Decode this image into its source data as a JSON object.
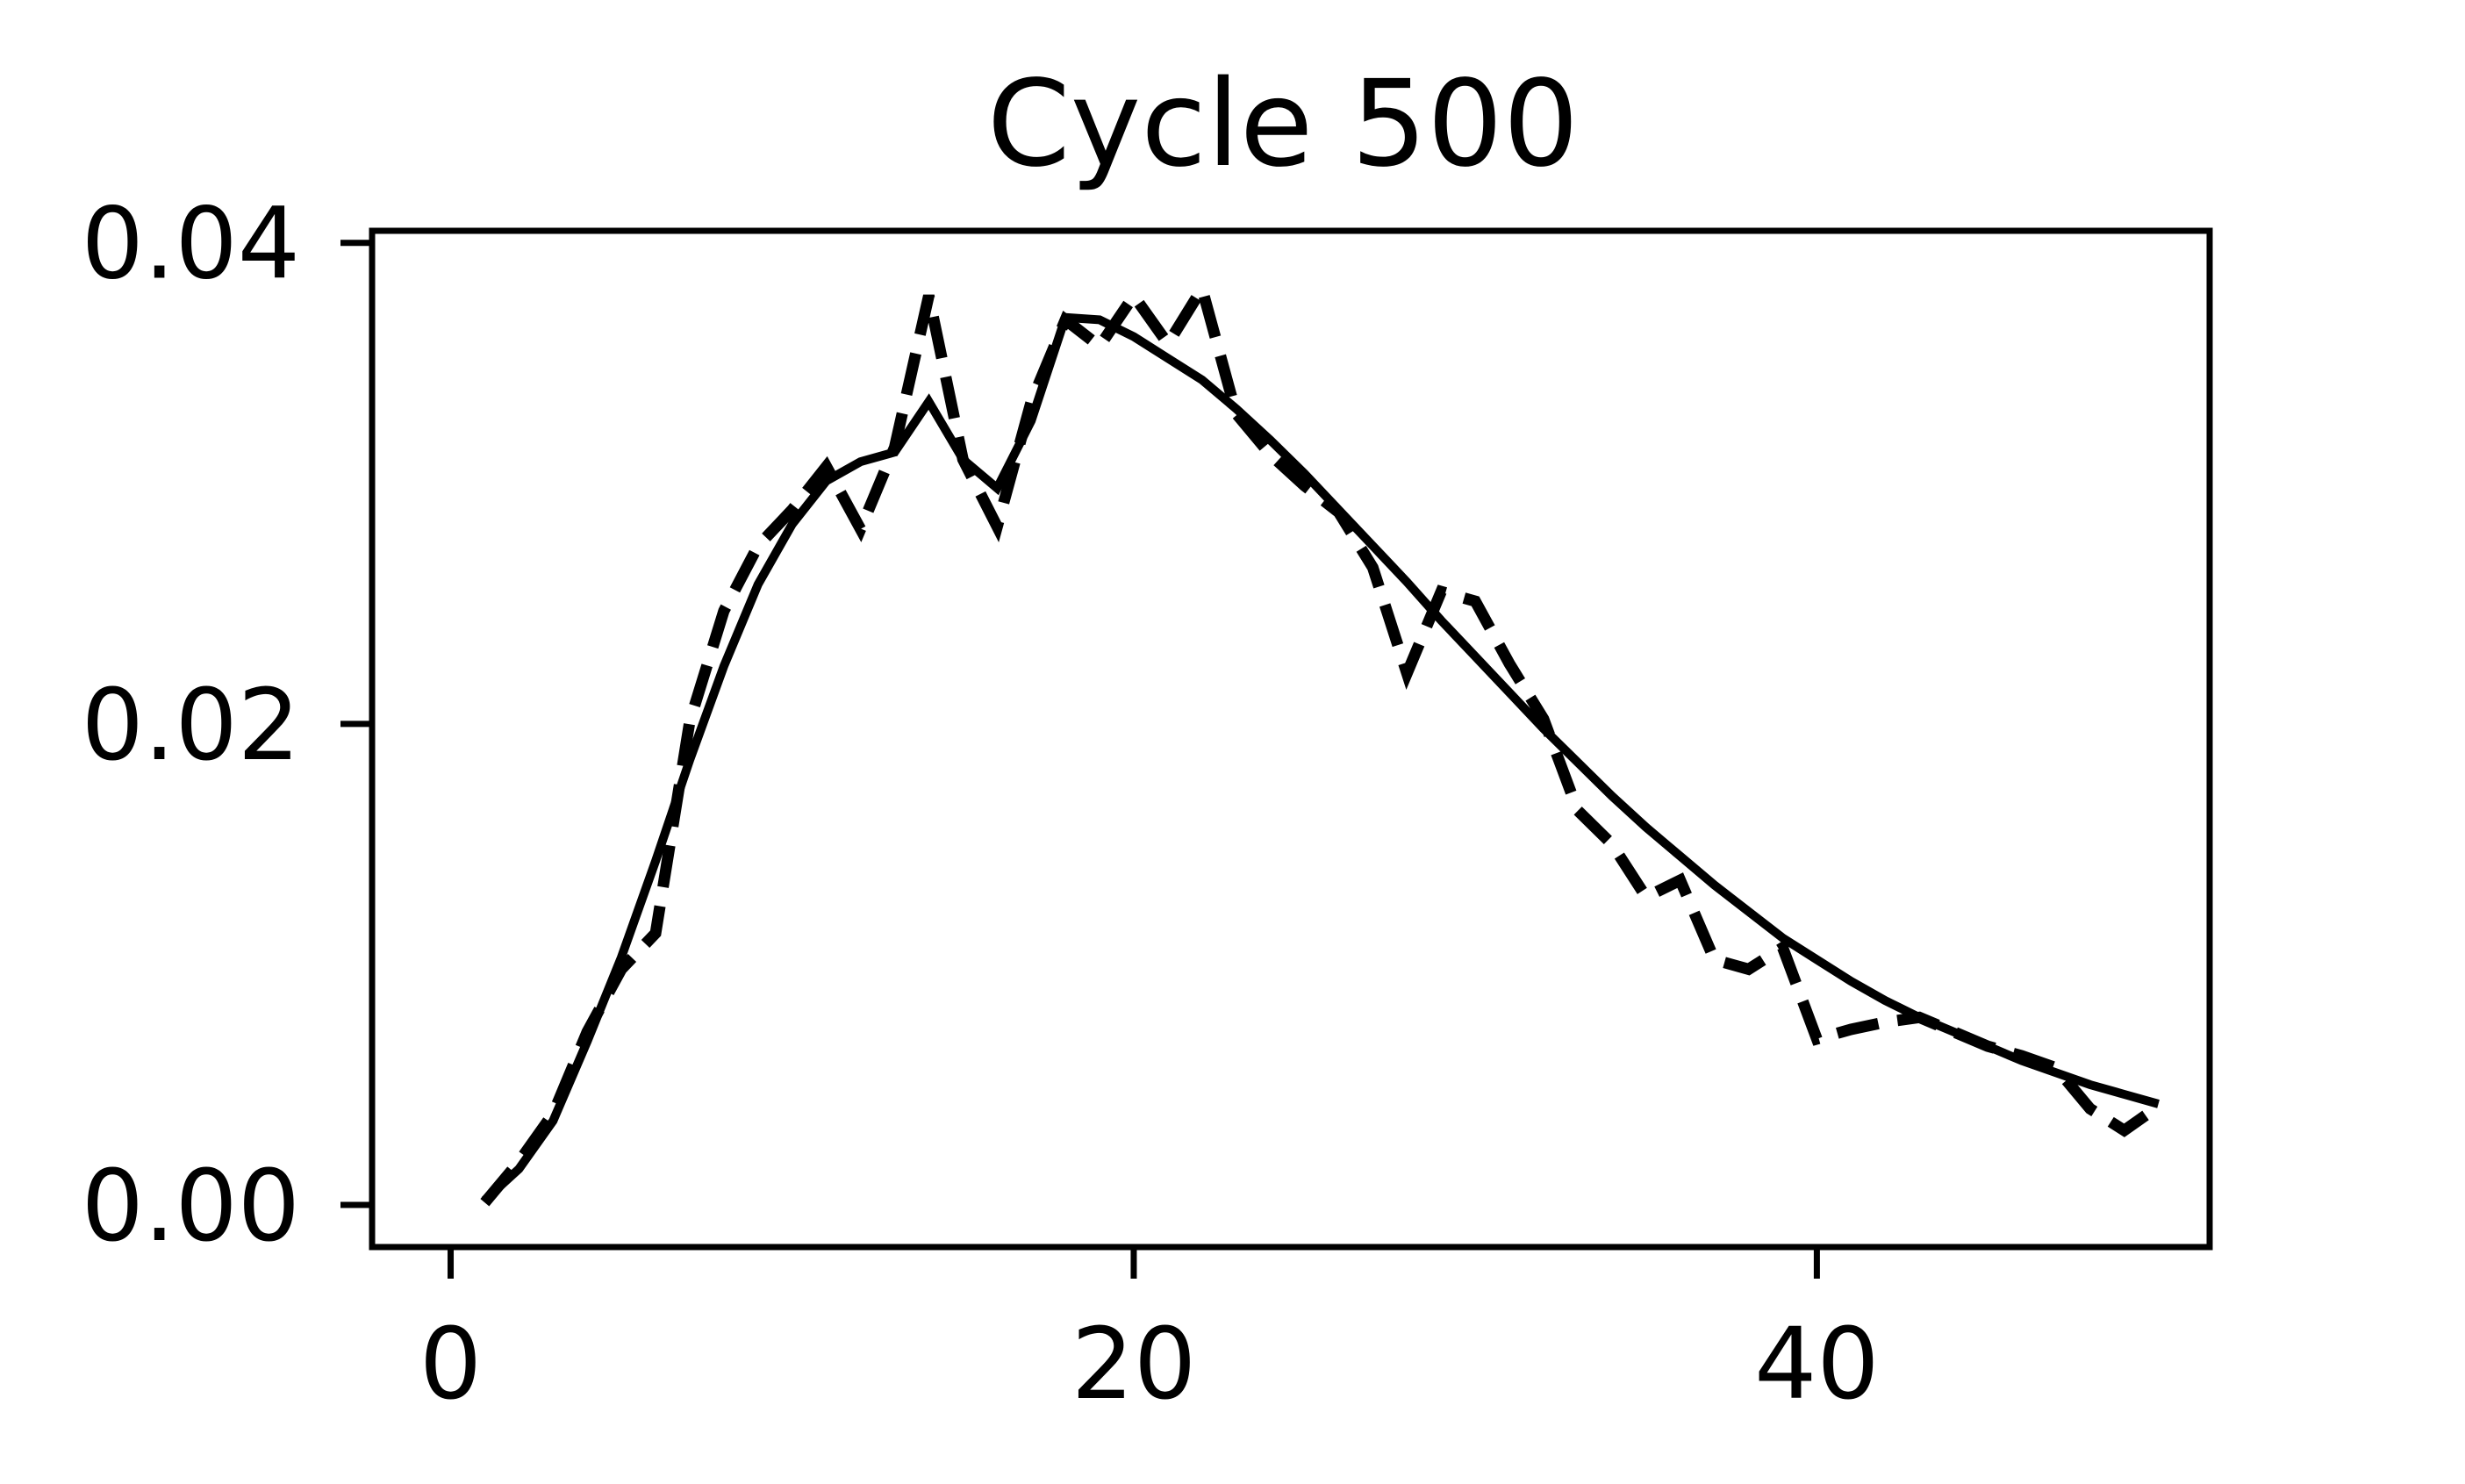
{
  "chart_data": {
    "type": "line",
    "title": "Cycle 500",
    "xlabel": "",
    "ylabel": "",
    "xlim": [
      -2.3,
      51.5
    ],
    "ylim": [
      -0.00175,
      0.0405
    ],
    "xticks": [
      {
        "value": 0,
        "label": "0"
      },
      {
        "value": 20,
        "label": "20"
      },
      {
        "value": 40,
        "label": "40"
      }
    ],
    "yticks": [
      {
        "value": 0.0,
        "label": "0.00"
      },
      {
        "value": 0.02,
        "label": "0.02"
      },
      {
        "value": 0.04,
        "label": "0.04"
      }
    ],
    "grid": false,
    "legend": "none",
    "series": [
      {
        "style": "solid",
        "color": "#000000",
        "x": [
          1,
          2,
          3,
          4,
          5,
          6,
          7,
          8,
          9,
          10,
          11,
          12,
          13,
          14,
          15,
          16,
          17,
          18,
          19,
          20,
          21,
          22,
          23,
          24,
          25,
          26,
          27,
          28,
          29,
          30,
          31,
          32,
          33,
          34,
          35,
          36,
          37,
          38,
          39,
          40,
          41,
          42,
          43,
          44,
          45,
          46,
          47,
          48,
          49,
          50
        ],
        "y": [
          0.0002,
          0.0015,
          0.0035,
          0.0068,
          0.0103,
          0.0143,
          0.0185,
          0.0224,
          0.0258,
          0.0283,
          0.0301,
          0.0309,
          0.0313,
          0.0334,
          0.031,
          0.0298,
          0.0326,
          0.0369,
          0.0368,
          0.0361,
          0.0352,
          0.0343,
          0.0331,
          0.0318,
          0.0304,
          0.0289,
          0.0274,
          0.0259,
          0.0243,
          0.0228,
          0.0213,
          0.0198,
          0.0184,
          0.017,
          0.0157,
          0.0145,
          0.0133,
          0.0122,
          0.0111,
          0.0102,
          0.0093,
          0.0085,
          0.0078,
          0.0072,
          0.0066,
          0.006,
          0.0055,
          0.005,
          0.0046,
          0.0042
        ]
      },
      {
        "style": "dashed",
        "color": "#000000",
        "x": [
          1,
          2,
          3,
          4,
          5,
          6,
          7,
          8,
          9,
          10,
          11,
          12,
          13,
          14,
          15,
          16,
          17,
          18,
          19,
          20,
          21,
          22,
          23,
          24,
          25,
          26,
          27,
          28,
          29,
          30,
          31,
          32,
          33,
          34,
          35,
          36,
          37,
          38,
          39,
          40,
          41,
          42,
          43,
          44,
          45,
          46,
          47,
          48,
          49,
          50
        ],
        "y": [
          0.0001,
          0.0018,
          0.0038,
          0.0072,
          0.0098,
          0.0113,
          0.0201,
          0.0247,
          0.0274,
          0.0289,
          0.0307,
          0.0281,
          0.0315,
          0.0378,
          0.031,
          0.0282,
          0.0334,
          0.0368,
          0.0357,
          0.0378,
          0.0358,
          0.0381,
          0.0329,
          0.0312,
          0.0299,
          0.0288,
          0.0265,
          0.0221,
          0.0255,
          0.0251,
          0.0225,
          0.0202,
          0.0164,
          0.015,
          0.0128,
          0.0135,
          0.0102,
          0.0098,
          0.0107,
          0.0069,
          0.0073,
          0.0076,
          0.0078,
          0.0072,
          0.0066,
          0.0062,
          0.0057,
          0.004,
          0.0031,
          0.0041
        ]
      }
    ]
  }
}
